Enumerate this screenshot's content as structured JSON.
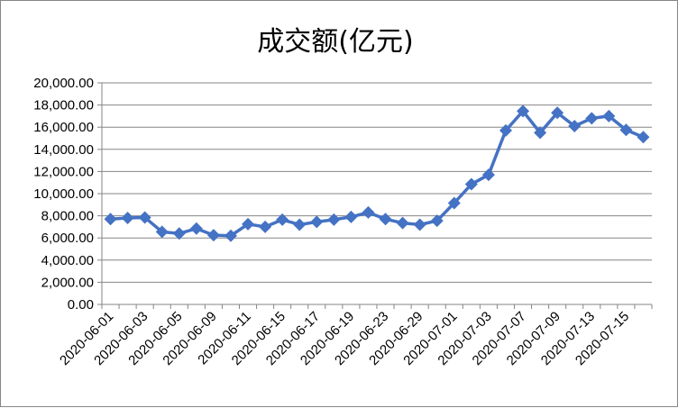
{
  "chart_data": {
    "type": "line",
    "title": "成交额(亿元)",
    "xlabel": "",
    "ylabel": "",
    "ylim": [
      0,
      20000
    ],
    "yticks": [
      "0.00",
      "2,000.00",
      "4,000.00",
      "6,000.00",
      "8,000.00",
      "10,000.00",
      "12,000.00",
      "14,000.00",
      "16,000.00",
      "18,000.00",
      "20,000.00"
    ],
    "grid": true,
    "legend": "none",
    "x": [
      "2020-06-01",
      "2020-06-02",
      "2020-06-03",
      "2020-06-04",
      "2020-06-05",
      "2020-06-08",
      "2020-06-09",
      "2020-06-10",
      "2020-06-11",
      "2020-06-12",
      "2020-06-15",
      "2020-06-16",
      "2020-06-17",
      "2020-06-18",
      "2020-06-19",
      "2020-06-22",
      "2020-06-23",
      "2020-06-24",
      "2020-06-29",
      "2020-06-30",
      "2020-07-01",
      "2020-07-02",
      "2020-07-03",
      "2020-07-06",
      "2020-07-07",
      "2020-07-08",
      "2020-07-09",
      "2020-07-10",
      "2020-07-13",
      "2020-07-14",
      "2020-07-15",
      "2020-07-16"
    ],
    "xtick_labels": [
      "2020-06-01",
      "2020-06-03",
      "2020-06-05",
      "2020-06-09",
      "2020-06-11",
      "2020-06-15",
      "2020-06-17",
      "2020-06-19",
      "2020-06-23",
      "2020-06-29",
      "2020-07-01",
      "2020-07-03",
      "2020-07-07",
      "2020-07-09",
      "2020-07-13",
      "2020-07-15"
    ],
    "series": [
      {
        "values": [
          7700,
          7800,
          7850,
          6550,
          6400,
          6850,
          6250,
          6200,
          7250,
          7000,
          7650,
          7200,
          7450,
          7650,
          7900,
          8300,
          7700,
          7350,
          7200,
          7550,
          9150,
          10850,
          11700,
          15700,
          17450,
          15500,
          17300,
          16100,
          16800,
          17000,
          15750,
          15100
        ]
      }
    ],
    "colors": {
      "series": "#4472C4",
      "grid": "#868686",
      "axis": "#868686"
    }
  }
}
